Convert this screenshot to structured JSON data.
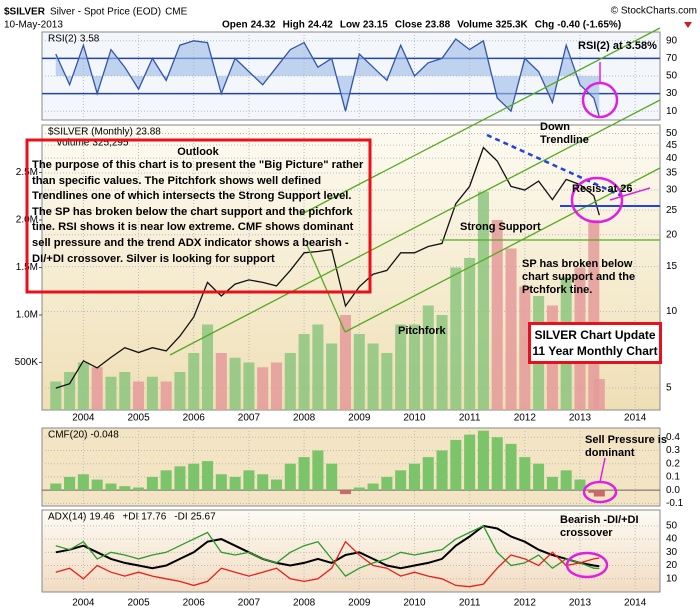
{
  "header": {
    "symbol": "$SILVER",
    "name": "Silver - Spot Price (EOD)",
    "exchange": "CME",
    "copyright": "© StockCharts.com",
    "date": "10-May-2013",
    "quote": [
      {
        "label": "Open",
        "value": "24.32"
      },
      {
        "label": "High",
        "value": "24.42"
      },
      {
        "label": "Low",
        "value": "23.15"
      },
      {
        "label": "Close",
        "value": "23.88"
      },
      {
        "label": "Volume",
        "value": "325.3K"
      },
      {
        "label": "Chg",
        "value": "-0.40 (-1.65%)"
      }
    ]
  },
  "annotations": [
    "Outlook",
    "The purpose of this chart is to present the \"Big Picture\" rather than specific values. The Pitchfork shows well defined Trendlines one of which intersects the Strong Support level. The SP has broken below the chart support and the pichfork tine. RSI shows it is near low extreme. CMF shows dominant sell pressure and the trend ADX indicator shows a bearish -DI/+DI crossover. Silver is looking for support",
    "Down\nTrendline",
    "Resis. at 26",
    "Strong Support",
    "SP has broken below\nchart support and the\nPtchfork tine.",
    "Pitchfork",
    "SILVER Chart Update\n11 Year Monthly Chart",
    "RSI(2) at 3.58%",
    "Sell Pressure is\ndominant",
    "Bearish -DI/+DI\ncrossover"
  ],
  "chart_data": [
    {
      "type": "line",
      "panel": "rsi",
      "xlim": [
        2003.25,
        2014.45
      ],
      "xticks": [
        2004,
        2005,
        2006,
        2007,
        2008,
        2009,
        2010,
        2011,
        2012,
        2013,
        2014
      ],
      "ylim": [
        0,
        100
      ],
      "yticks": [
        90,
        70,
        50,
        30,
        10
      ],
      "overbought": 70,
      "oversold": 30,
      "grid": true,
      "x": [
        2003.5,
        2003.75,
        2004,
        2004.25,
        2004.5,
        2004.75,
        2005,
        2005.25,
        2005.5,
        2005.75,
        2006,
        2006.25,
        2006.5,
        2006.75,
        2007,
        2007.25,
        2007.5,
        2007.75,
        2008,
        2008.25,
        2008.5,
        2008.75,
        2009,
        2009.25,
        2009.5,
        2009.75,
        2010,
        2010.25,
        2010.5,
        2010.75,
        2011,
        2011.25,
        2011.5,
        2011.75,
        2012,
        2012.25,
        2012.5,
        2012.75,
        2013,
        2013.25,
        2013.35
      ],
      "series": [
        {
          "name": "RSI(2)",
          "color": "#3355aa",
          "values": [
            75,
            40,
            85,
            30,
            80,
            60,
            35,
            70,
            45,
            85,
            90,
            88,
            30,
            70,
            55,
            40,
            60,
            80,
            88,
            60,
            70,
            10,
            75,
            60,
            45,
            85,
            50,
            65,
            70,
            92,
            80,
            90,
            25,
            10,
            70,
            55,
            20,
            85,
            40,
            25,
            3.58
          ]
        }
      ]
    },
    {
      "type": "line",
      "panel": "price",
      "log": true,
      "xlim": [
        2003.25,
        2014.45
      ],
      "xticks": [
        2004,
        2005,
        2006,
        2007,
        2008,
        2009,
        2010,
        2011,
        2012,
        2013,
        2014
      ],
      "ylim": [
        4.1,
        54
      ],
      "yticks": [
        50,
        45,
        40,
        35,
        30,
        25,
        20,
        15,
        10,
        5
      ],
      "y2lim": [
        0,
        3000000
      ],
      "y2ticks": [
        {
          "value": 2500000,
          "label": "2.5M"
        },
        {
          "value": 2000000,
          "label": "2.0M"
        },
        {
          "value": 1500000,
          "label": "1.5M"
        },
        {
          "value": 1000000,
          "label": "1.0M"
        },
        {
          "value": 500000,
          "label": "500K"
        }
      ],
      "grid": true,
      "x": [
        2003.5,
        2003.75,
        2004,
        2004.25,
        2004.5,
        2004.75,
        2005,
        2005.25,
        2005.5,
        2005.75,
        2006,
        2006.25,
        2006.5,
        2006.75,
        2007,
        2007.25,
        2007.5,
        2007.75,
        2008,
        2008.25,
        2008.5,
        2008.75,
        2009,
        2009.25,
        2009.5,
        2009.75,
        2010,
        2010.25,
        2010.5,
        2010.75,
        2011,
        2011.25,
        2011.5,
        2011.75,
        2012,
        2012.25,
        2012.5,
        2012.75,
        2013,
        2013.25,
        2013.35
      ],
      "series": [
        {
          "name": "$SILVER (Monthly)",
          "color": "#111111",
          "values": [
            5.0,
            5.2,
            6.4,
            6.0,
            6.6,
            7.2,
            6.9,
            7.2,
            7.0,
            8.0,
            9.5,
            13.0,
            11.5,
            12.8,
            13.3,
            13.0,
            12.6,
            14.5,
            17.0,
            17.2,
            17.5,
            10.5,
            12.5,
            14.0,
            14.5,
            17.0,
            17.0,
            18.0,
            18.5,
            26.5,
            31.0,
            44.0,
            39.0,
            31.0,
            30.0,
            32.5,
            27.5,
            33.0,
            31.5,
            28.5,
            23.88
          ]
        },
        {
          "name": "Volume",
          "last_label": "325,295",
          "axis": "y2",
          "color": "#8cc57f",
          "down_color": "#e49a9a",
          "values": [
            300000,
            400000,
            500000,
            450000,
            350000,
            400000,
            300000,
            350000,
            300000,
            400000,
            600000,
            900000,
            600000,
            550000,
            500000,
            450000,
            500000,
            600000,
            800000,
            900000,
            700000,
            1000000,
            800000,
            700000,
            600000,
            900000,
            900000,
            1100000,
            1000000,
            1500000,
            1600000,
            2300000,
            2000000,
            1700000,
            1300000,
            1200000,
            1100000,
            1400000,
            1500000,
            2000000,
            325295
          ]
        }
      ]
    },
    {
      "type": "bar",
      "panel": "cmf",
      "xlim": [
        2003.25,
        2014.45
      ],
      "xticks": [
        2004,
        2005,
        2006,
        2007,
        2008,
        2009,
        2010,
        2011,
        2012,
        2013,
        2014
      ],
      "ylim": [
        -0.12,
        0.47
      ],
      "yticks": [
        0.4,
        0.3,
        0.2,
        0.1,
        {
          "value": 0,
          "label": "0.0"
        },
        -0.1
      ],
      "grid": true,
      "x": [
        2003.5,
        2003.75,
        2004,
        2004.25,
        2004.5,
        2004.75,
        2005,
        2005.25,
        2005.5,
        2005.75,
        2006,
        2006.25,
        2006.5,
        2006.75,
        2007,
        2007.25,
        2007.5,
        2007.75,
        2008,
        2008.25,
        2008.5,
        2008.75,
        2009,
        2009.25,
        2009.5,
        2009.75,
        2010,
        2010.25,
        2010.5,
        2010.75,
        2011,
        2011.25,
        2011.5,
        2011.75,
        2012,
        2012.25,
        2012.5,
        2012.75,
        2013,
        2013.25,
        2013.35
      ],
      "series": [
        {
          "name": "CMF(20)",
          "color": "#7cc46a",
          "negative_color": "#c96a6a",
          "values": [
            0.05,
            0.1,
            0.12,
            0.08,
            0.05,
            0.03,
            0.02,
            0.1,
            0.15,
            0.18,
            0.2,
            0.22,
            0.12,
            0.1,
            0.15,
            0.12,
            0.08,
            0.2,
            0.25,
            0.3,
            0.2,
            -0.03,
            0.02,
            0.05,
            0.1,
            0.15,
            0.2,
            0.25,
            0.3,
            0.38,
            0.42,
            0.45,
            0.4,
            0.35,
            0.25,
            0.2,
            0.1,
            0.15,
            0.08,
            -0.02,
            -0.048
          ]
        }
      ]
    },
    {
      "type": "line",
      "panel": "adx",
      "xlim": [
        2003.25,
        2014.45
      ],
      "xticks": [
        2004,
        2005,
        2006,
        2007,
        2008,
        2009,
        2010,
        2011,
        2012,
        2013,
        2014
      ],
      "ylim": [
        0,
        62
      ],
      "yticks": [
        50,
        40,
        30,
        20,
        10
      ],
      "grid": true,
      "x": [
        2003.5,
        2003.75,
        2004,
        2004.25,
        2004.5,
        2004.75,
        2005,
        2005.25,
        2005.5,
        2005.75,
        2006,
        2006.25,
        2006.5,
        2006.75,
        2007,
        2007.25,
        2007.5,
        2007.75,
        2008,
        2008.25,
        2008.5,
        2008.75,
        2009,
        2009.25,
        2009.5,
        2009.75,
        2010,
        2010.25,
        2010.5,
        2010.75,
        2011,
        2011.25,
        2011.5,
        2011.75,
        2012,
        2012.25,
        2012.5,
        2012.75,
        2013,
        2013.25,
        2013.35
      ],
      "series": [
        {
          "name": "ADX(14)",
          "color": "#000000",
          "values": [
            30,
            32,
            35,
            30,
            25,
            22,
            20,
            18,
            20,
            25,
            30,
            38,
            40,
            35,
            30,
            25,
            22,
            20,
            22,
            25,
            22,
            28,
            30,
            25,
            20,
            18,
            20,
            22,
            25,
            35,
            42,
            50,
            48,
            42,
            38,
            32,
            28,
            25,
            22,
            20,
            19.46
          ]
        },
        {
          "name": "+DI",
          "color": "#2e9a2e",
          "values": [
            35,
            32,
            38,
            25,
            30,
            28,
            25,
            28,
            30,
            35,
            40,
            45,
            30,
            28,
            30,
            25,
            22,
            30,
            35,
            38,
            25,
            12,
            18,
            22,
            25,
            30,
            28,
            30,
            32,
            40,
            45,
            50,
            30,
            20,
            22,
            28,
            18,
            25,
            22,
            18,
            17.76
          ]
        },
        {
          "name": "-DI",
          "color": "#e8201a",
          "values": [
            15,
            18,
            10,
            20,
            15,
            12,
            15,
            12,
            10,
            8,
            5,
            8,
            18,
            15,
            12,
            15,
            18,
            10,
            8,
            10,
            18,
            38,
            28,
            20,
            18,
            12,
            15,
            12,
            10,
            5,
            4,
            6,
            18,
            28,
            25,
            20,
            30,
            20,
            22,
            25,
            25.67
          ]
        }
      ]
    }
  ]
}
